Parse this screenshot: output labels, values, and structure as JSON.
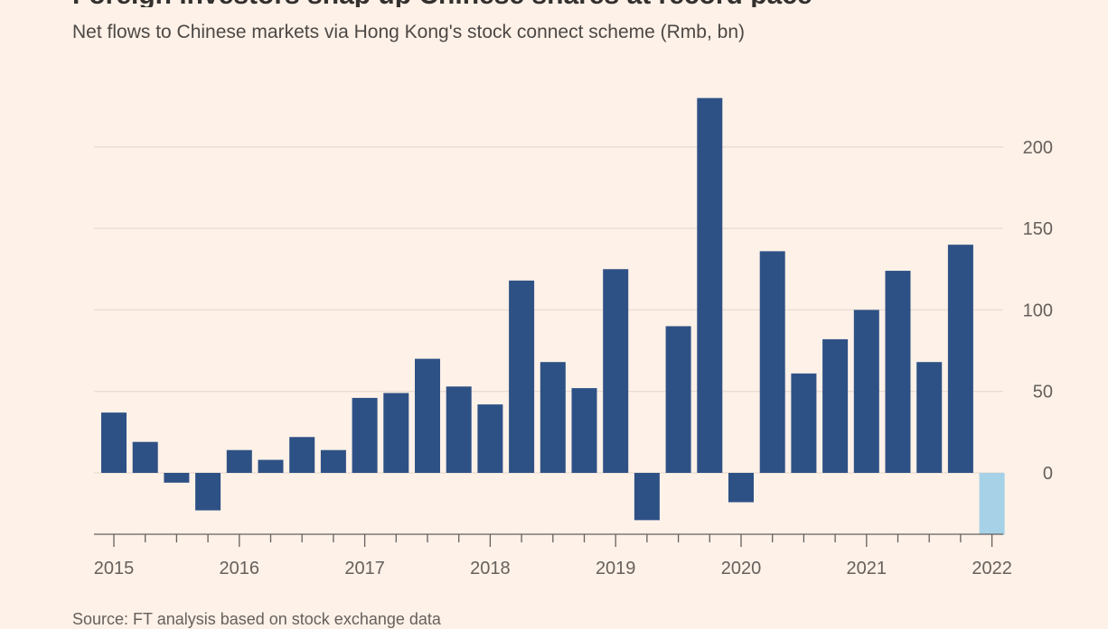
{
  "header": {
    "title": "Foreign investors snap up Chinese shares at record pace",
    "subtitle": "Net flows to Chinese markets via Hong Kong's stock connect scheme (Rmb, bn)"
  },
  "footer": {
    "source": "Source: FT analysis based on stock exchange data"
  },
  "chart_data": {
    "type": "bar",
    "title": "Foreign investors snap up Chinese shares at record pace",
    "subtitle": "Net flows to Chinese markets via Hong Kong's stock connect scheme (Rmb, bn)",
    "xlabel": "",
    "ylabel": "",
    "ylim": [
      -38,
      230
    ],
    "yticks": [
      0,
      50,
      100,
      150,
      200
    ],
    "xticks": [
      "2015",
      "2016",
      "2017",
      "2018",
      "2019",
      "2020",
      "2021",
      "2022"
    ],
    "categories": [
      "2015 Q1",
      "2015 Q2",
      "2015 Q3",
      "2015 Q4",
      "2016 Q1",
      "2016 Q2",
      "2016 Q3",
      "2016 Q4",
      "2017 Q1",
      "2017 Q2",
      "2017 Q3",
      "2017 Q4",
      "2018 Q1",
      "2018 Q2",
      "2018 Q3",
      "2018 Q4",
      "2019 Q1",
      "2019 Q2",
      "2019 Q3",
      "2019 Q4",
      "2020 Q1",
      "2020 Q2",
      "2020 Q3",
      "2020 Q4",
      "2021 Q1",
      "2021 Q2",
      "2021 Q3",
      "2021 Q4",
      "2022 Q1"
    ],
    "values": [
      37,
      19,
      -6,
      -23,
      14,
      8,
      22,
      14,
      46,
      49,
      70,
      53,
      42,
      118,
      68,
      52,
      125,
      -29,
      90,
      230,
      -18,
      136,
      61,
      82,
      100,
      124,
      68,
      140,
      -38
    ],
    "grid": true,
    "y_axis_side": "right",
    "colors": {
      "bar": "#2e5185",
      "highlight_bar": "#a6d1e7",
      "grid": "#e9dcd2",
      "axis": "#66605c",
      "background": "#fdf1e8"
    },
    "highlight_index": 28
  }
}
